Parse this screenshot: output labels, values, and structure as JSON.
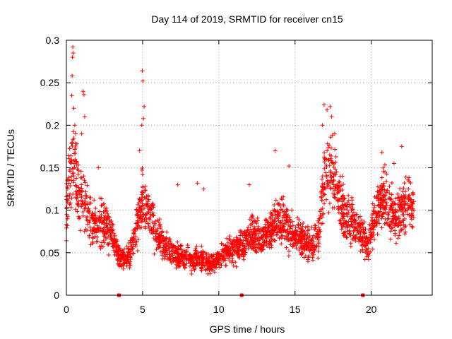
{
  "chart_data": {
    "type": "scatter",
    "title": "Day 114 of 2019, SRMTID for receiver cn15",
    "xlabel": "GPS time / hours",
    "ylabel": "SRMTID / TECUs",
    "xlim": [
      0,
      24
    ],
    "ylim": [
      0,
      0.3
    ],
    "x_ticks": [
      0,
      5,
      10,
      15,
      20
    ],
    "x_tick_labels": [
      "0",
      "5",
      "10",
      "15",
      "20"
    ],
    "y_ticks": [
      0,
      0.05,
      0.1,
      0.15,
      0.2,
      0.25,
      0.3
    ],
    "y_tick_labels": [
      "0",
      "0.05",
      "0.1",
      "0.15",
      "0.2",
      "0.25",
      "0.3"
    ],
    "grid": true,
    "marker": "plus",
    "color": "#ff0000",
    "markers_on_axis": [
      3.45,
      11.5,
      19.45
    ],
    "envelope": [
      [
        0.0,
        0.105
      ],
      [
        0.3,
        0.15
      ],
      [
        0.5,
        0.165
      ],
      [
        0.8,
        0.118
      ],
      [
        1.2,
        0.115
      ],
      [
        1.6,
        0.088
      ],
      [
        2.0,
        0.082
      ],
      [
        2.5,
        0.085
      ],
      [
        3.0,
        0.068
      ],
      [
        3.4,
        0.05
      ],
      [
        3.7,
        0.04
      ],
      [
        4.2,
        0.05
      ],
      [
        4.6,
        0.08
      ],
      [
        5.0,
        0.115
      ],
      [
        5.4,
        0.095
      ],
      [
        5.9,
        0.075
      ],
      [
        6.4,
        0.06
      ],
      [
        7.0,
        0.048
      ],
      [
        7.6,
        0.045
      ],
      [
        8.2,
        0.04
      ],
      [
        8.8,
        0.045
      ],
      [
        9.3,
        0.035
      ],
      [
        9.8,
        0.04
      ],
      [
        10.4,
        0.05
      ],
      [
        11.0,
        0.055
      ],
      [
        11.6,
        0.06
      ],
      [
        12.2,
        0.07
      ],
      [
        12.8,
        0.065
      ],
      [
        13.3,
        0.075
      ],
      [
        14.0,
        0.09
      ],
      [
        14.5,
        0.075
      ],
      [
        15.0,
        0.07
      ],
      [
        15.6,
        0.065
      ],
      [
        16.0,
        0.058
      ],
      [
        16.5,
        0.07
      ],
      [
        17.0,
        0.14
      ],
      [
        17.4,
        0.15
      ],
      [
        17.8,
        0.12
      ],
      [
        18.3,
        0.09
      ],
      [
        18.8,
        0.085
      ],
      [
        19.3,
        0.07
      ],
      [
        19.8,
        0.06
      ],
      [
        20.3,
        0.095
      ],
      [
        20.8,
        0.115
      ],
      [
        21.3,
        0.1
      ],
      [
        21.8,
        0.09
      ],
      [
        22.3,
        0.11
      ],
      [
        22.8,
        0.1
      ]
    ],
    "spikes": [
      [
        0.42,
        0.292
      ],
      [
        0.45,
        0.285
      ],
      [
        0.4,
        0.28
      ],
      [
        0.38,
        0.258
      ],
      [
        0.35,
        0.235
      ],
      [
        0.48,
        0.22
      ],
      [
        0.55,
        0.2
      ],
      [
        0.6,
        0.19
      ],
      [
        1.1,
        0.24
      ],
      [
        1.15,
        0.236
      ],
      [
        1.2,
        0.21
      ],
      [
        1.0,
        0.19
      ],
      [
        4.98,
        0.264
      ],
      [
        5.02,
        0.252
      ],
      [
        5.1,
        0.222
      ],
      [
        5.05,
        0.208
      ],
      [
        4.95,
        0.2
      ],
      [
        4.8,
        0.17
      ],
      [
        16.9,
        0.224
      ],
      [
        17.1,
        0.218
      ],
      [
        17.3,
        0.222
      ],
      [
        17.4,
        0.21
      ],
      [
        16.8,
        0.2
      ],
      [
        17.6,
        0.19
      ],
      [
        13.7,
        0.17
      ],
      [
        22.0,
        0.175
      ],
      [
        20.7,
        0.168
      ],
      [
        2.1,
        0.15
      ],
      [
        7.3,
        0.13
      ],
      [
        8.6,
        0.132
      ],
      [
        9.0,
        0.125
      ],
      [
        14.6,
        0.152
      ],
      [
        21.5,
        0.155
      ],
      [
        18.1,
        0.14
      ],
      [
        12.0,
        0.13
      ]
    ]
  }
}
